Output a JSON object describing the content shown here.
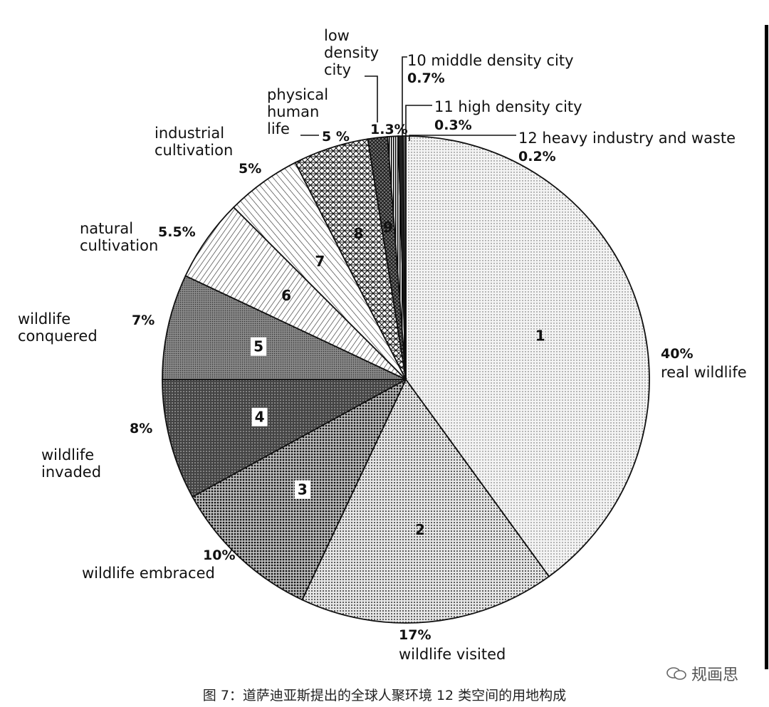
{
  "chart_data": {
    "type": "pie",
    "slices": [
      {
        "num": "1",
        "value": 40,
        "pct_label": "40%",
        "name": "real wildlife"
      },
      {
        "num": "2",
        "value": 17,
        "pct_label": "17%",
        "name": "wildlife visited"
      },
      {
        "num": "3",
        "value": 10,
        "pct_label": "10%",
        "name": "wildlife embraced"
      },
      {
        "num": "4",
        "value": 8,
        "pct_label": "8%",
        "name": "wildlife invaded"
      },
      {
        "num": "5",
        "value": 7,
        "pct_label": "7%",
        "name": "wildlife conquered"
      },
      {
        "num": "6",
        "value": 5.5,
        "pct_label": "5.5%",
        "name": "natural cultivation"
      },
      {
        "num": "7",
        "value": 5,
        "pct_label": "5%",
        "name": "industrial cultivation"
      },
      {
        "num": "8",
        "value": 5,
        "pct_label": "5 %",
        "name": "physical human life"
      },
      {
        "num": "9",
        "value": 1.3,
        "pct_label": "1.3%",
        "name": "low density city"
      },
      {
        "num": "10",
        "value": 0.7,
        "pct_label": "0.7%",
        "name": "10 middle density city"
      },
      {
        "num": "11",
        "value": 0.3,
        "pct_label": "0.3%",
        "name": "11 high density city"
      },
      {
        "num": "12",
        "value": 0.2,
        "pct_label": "0.2%",
        "name": "12 heavy industry and waste"
      }
    ]
  },
  "caption": "图 7：道萨迪亚斯提出的全球人聚环境 12 类空间的用地构成",
  "watermark": "规画思"
}
